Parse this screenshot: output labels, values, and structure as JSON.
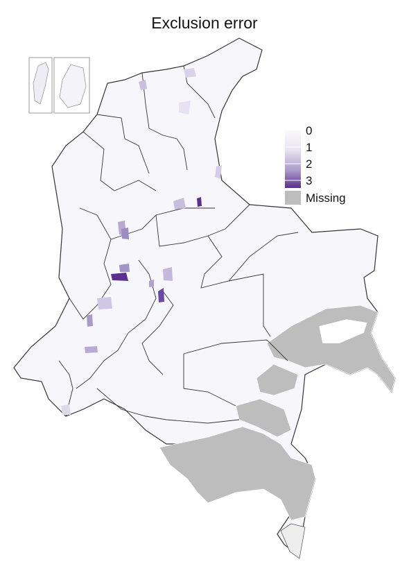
{
  "title": "Exclusion error",
  "legend": {
    "tick_labels": [
      "0",
      "1",
      "2",
      "3"
    ],
    "missing_label": "Missing",
    "gradient_low_color": "#fbfafd",
    "gradient_high_color": "#5a2f8e",
    "missing_color": "#bdbdbd"
  },
  "map": {
    "country": "Colombia",
    "base_fill_color": "#f7f6fb",
    "border_color": "#333333",
    "inset_count": 2
  }
}
